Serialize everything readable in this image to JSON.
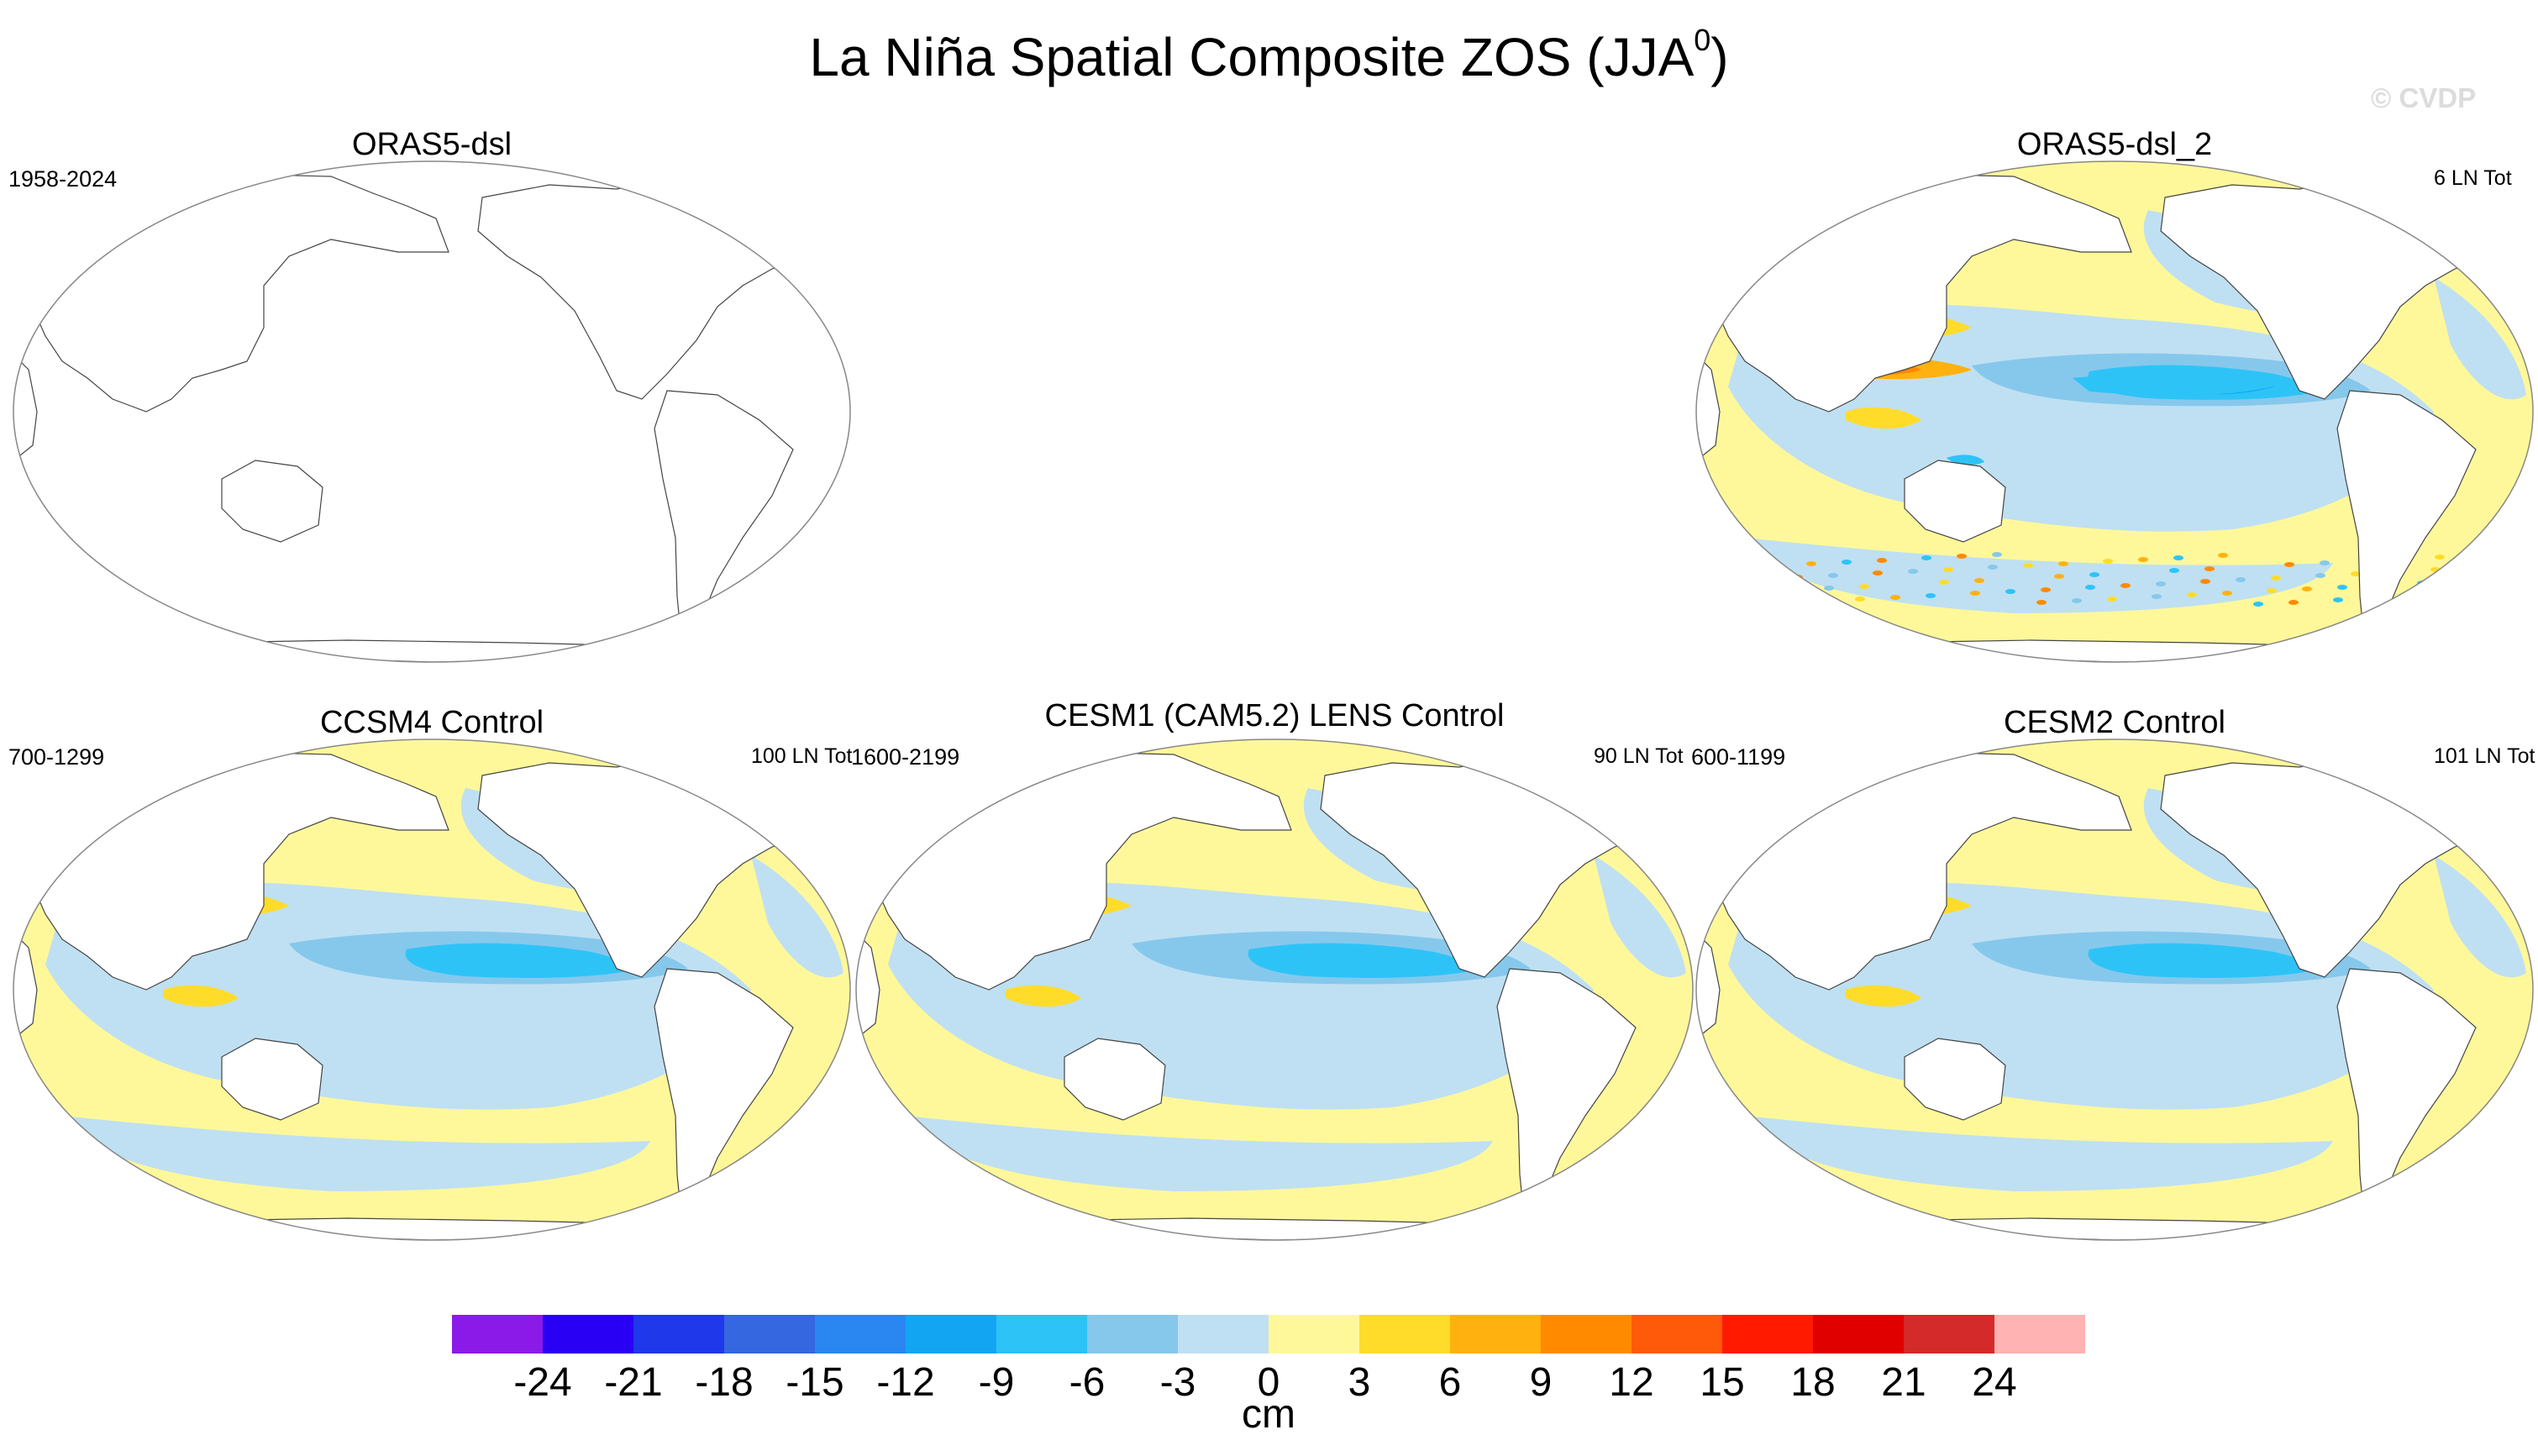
{
  "title": "La Niña Spatial Composite ZOS (JJA",
  "title_superscript": "0",
  "title_suffix": ")",
  "watermark": "© CVDP",
  "panels": [
    {
      "id": "p1",
      "title": "ORAS5-dsl",
      "left_label": "1958-2024",
      "right_label": "",
      "filled": false,
      "pattern": "none"
    },
    {
      "id": "p2",
      "title": "ORAS5-dsl_2",
      "left_label": "",
      "right_label": "6 LN Tot",
      "filled": true,
      "pattern": "obs"
    },
    {
      "id": "p3",
      "title": "CCSM4 Control",
      "left_label": "700-1299",
      "right_label": "100 LN Tot",
      "filled": true,
      "pattern": "model"
    },
    {
      "id": "p4",
      "title": "CESM1 (CAM5.2) LENS Control",
      "left_label": "1600-2199",
      "right_label": "90 LN Tot",
      "filled": true,
      "pattern": "model"
    },
    {
      "id": "p5",
      "title": "CESM2 Control",
      "left_label": "600-1199",
      "right_label": "101 LN Tot",
      "filled": true,
      "pattern": "model"
    }
  ],
  "colorbar": {
    "units": "cm",
    "tick_labels": [
      "-24",
      "-21",
      "-18",
      "-15",
      "-12",
      "-9",
      "-6",
      "-3",
      "0",
      "3",
      "6",
      "9",
      "12",
      "15",
      "18",
      "21",
      "24"
    ],
    "colors": [
      "#8b1ae8",
      "#2a00f5",
      "#1e38ea",
      "#3467e0",
      "#2a86f0",
      "#12a6f2",
      "#2ec3f7",
      "#86c8ec",
      "#bfe0f2",
      "#fff89a",
      "#ffdc2a",
      "#ffb20f",
      "#ff8a00",
      "#ff5a0a",
      "#ff1a00",
      "#e00000",
      "#d42a2a",
      "#ffb3b3"
    ]
  }
}
